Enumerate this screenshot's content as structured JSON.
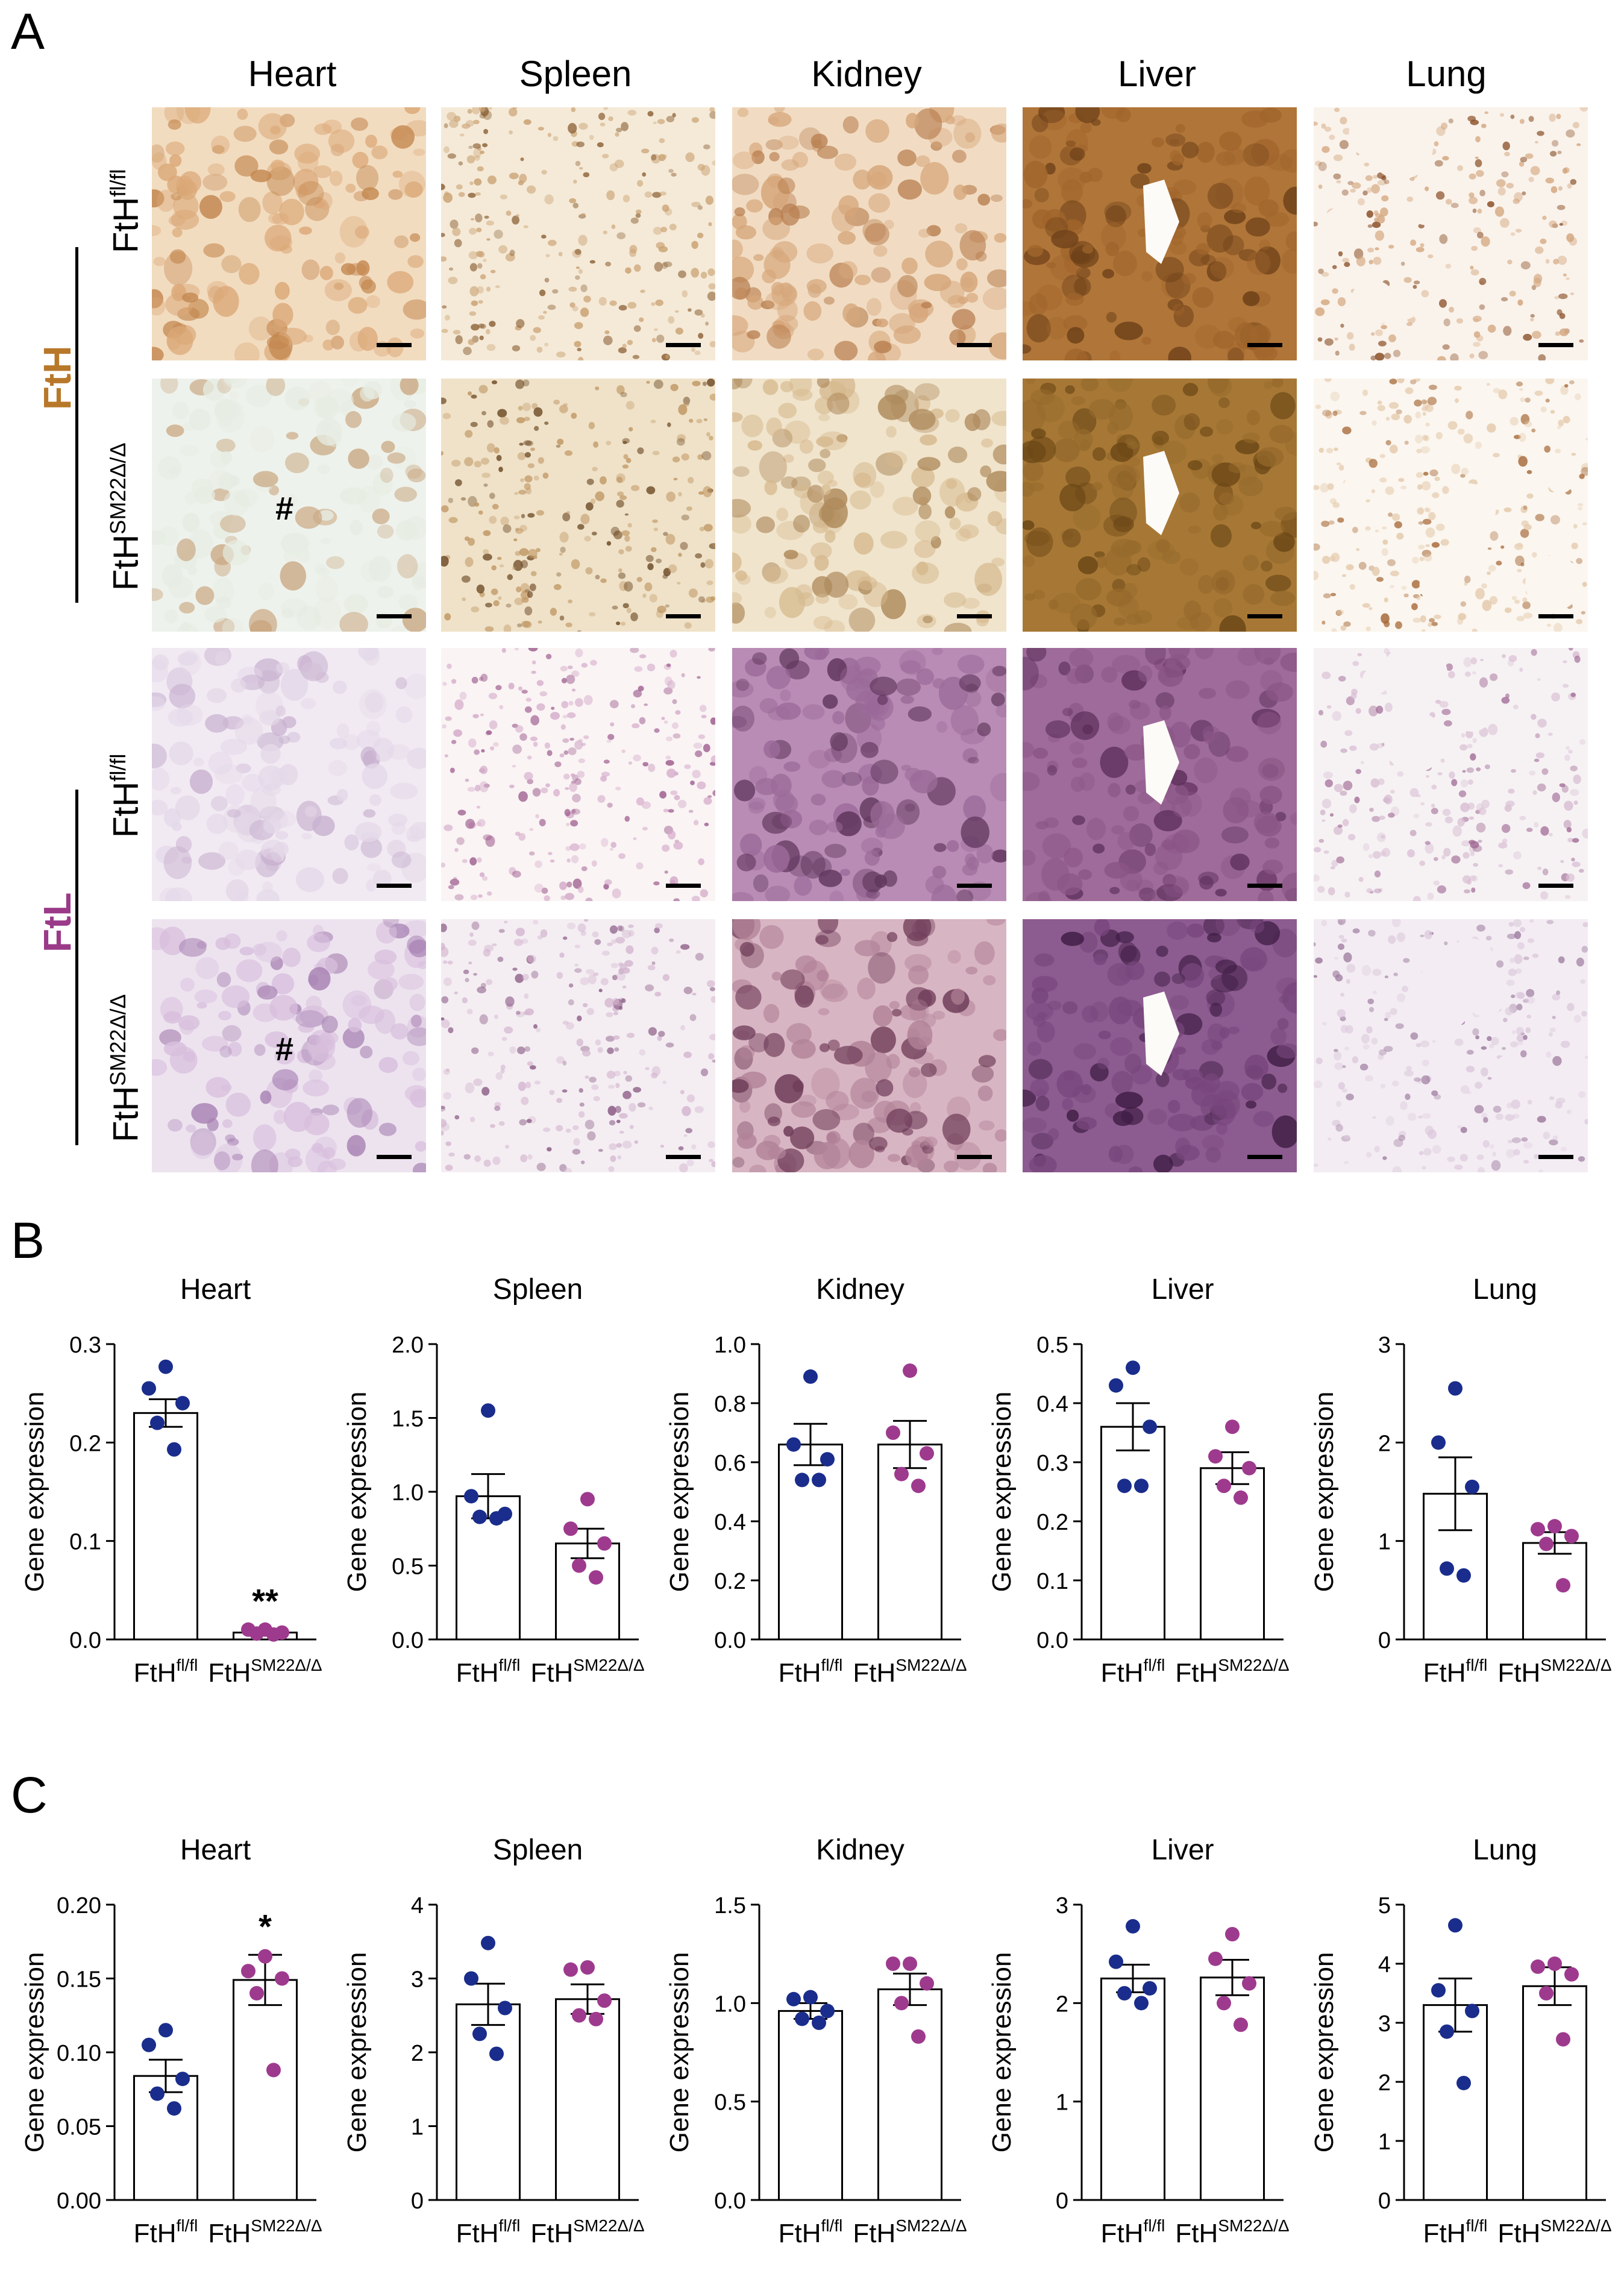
{
  "panels": {
    "A": "A",
    "B": "B",
    "C": "C"
  },
  "organs": [
    "Heart",
    "Spleen",
    "Kidney",
    "Liver",
    "Lung"
  ],
  "staining": {
    "group_labels": [
      "FtH",
      "FtL"
    ],
    "group_colors": [
      "#b8782a",
      "#9a3a88"
    ],
    "genotype_rows": [
      {
        "base": "FtH",
        "sup": "fl/fl"
      },
      {
        "base": "FtH",
        "sup": "SM22Δ/Δ"
      }
    ],
    "hash_mark": "#"
  },
  "colors": {
    "control": "#1a2d8c",
    "knockout": "#9e3a8e"
  },
  "chart_data": [
    {
      "panel": "B",
      "type": "bar",
      "title": "Heart",
      "ylabel": "Gene expression",
      "categories": [
        "FtH",
        "FtH"
      ],
      "category_sups": [
        "fl/fl",
        "SM22Δ/Δ"
      ],
      "ylim": [
        0,
        0.3
      ],
      "yticks": [
        "0.0",
        "0.1",
        "0.2",
        "0.3"
      ],
      "means": [
        0.23,
        0.007
      ],
      "sem": [
        0.014,
        0.002
      ],
      "points": [
        [
          0.277,
          0.255,
          0.24,
          0.22,
          0.193
        ],
        [
          0.01,
          0.01,
          0.007,
          0.006,
          0.005
        ]
      ],
      "annotation": "**",
      "annotation_index": 1
    },
    {
      "panel": "B",
      "type": "bar",
      "title": "Spleen",
      "ylabel": "Gene expression",
      "categories": [
        "FtH",
        "FtH"
      ],
      "category_sups": [
        "fl/fl",
        "SM22Δ/Δ"
      ],
      "ylim": [
        0,
        2.0
      ],
      "yticks": [
        "0.0",
        "0.5",
        "1.0",
        "1.5",
        "2.0"
      ],
      "means": [
        0.97,
        0.65
      ],
      "sem": [
        0.15,
        0.1
      ],
      "points": [
        [
          1.55,
          0.97,
          0.85,
          0.83,
          0.82
        ],
        [
          0.95,
          0.75,
          0.65,
          0.5,
          0.42
        ]
      ],
      "annotation": "",
      "annotation_index": null
    },
    {
      "panel": "B",
      "type": "bar",
      "title": "Kidney",
      "ylabel": "Gene expression",
      "categories": [
        "FtH",
        "FtH"
      ],
      "category_sups": [
        "fl/fl",
        "SM22Δ/Δ"
      ],
      "ylim": [
        0,
        1.0
      ],
      "yticks": [
        "0.0",
        "0.2",
        "0.4",
        "0.6",
        "0.8",
        "1.0"
      ],
      "means": [
        0.66,
        0.66
      ],
      "sem": [
        0.07,
        0.08
      ],
      "points": [
        [
          0.89,
          0.66,
          0.61,
          0.54,
          0.54
        ],
        [
          0.91,
          0.7,
          0.63,
          0.56,
          0.52
        ]
      ],
      "annotation": "",
      "annotation_index": null
    },
    {
      "panel": "B",
      "type": "bar",
      "title": "Liver",
      "ylabel": "Gene expression",
      "categories": [
        "FtH",
        "FtH"
      ],
      "category_sups": [
        "fl/fl",
        "SM22Δ/Δ"
      ],
      "ylim": [
        0,
        0.5
      ],
      "yticks": [
        "0.0",
        "0.1",
        "0.2",
        "0.3",
        "0.4",
        "0.5"
      ],
      "means": [
        0.36,
        0.29
      ],
      "sem": [
        0.04,
        0.027
      ],
      "points": [
        [
          0.46,
          0.43,
          0.36,
          0.26,
          0.26
        ],
        [
          0.36,
          0.31,
          0.29,
          0.26,
          0.24
        ]
      ],
      "annotation": "",
      "annotation_index": null
    },
    {
      "panel": "B",
      "type": "bar",
      "title": "Lung",
      "ylabel": "Gene expression",
      "categories": [
        "FtH",
        "FtH"
      ],
      "category_sups": [
        "fl/fl",
        "SM22Δ/Δ"
      ],
      "ylim": [
        0,
        3
      ],
      "yticks": [
        "0",
        "1",
        "2",
        "3"
      ],
      "means": [
        1.48,
        0.98
      ],
      "sem": [
        0.37,
        0.11
      ],
      "points": [
        [
          2.55,
          2.0,
          1.55,
          0.72,
          0.65
        ],
        [
          1.15,
          1.12,
          1.05,
          0.97,
          0.55
        ]
      ],
      "annotation": "",
      "annotation_index": null
    },
    {
      "panel": "C",
      "type": "bar",
      "title": "Heart",
      "ylabel": "Gene expression",
      "categories": [
        "FtH",
        "FtH"
      ],
      "category_sups": [
        "fl/fl",
        "SM22Δ/Δ"
      ],
      "ylim": [
        0,
        0.2
      ],
      "yticks": [
        "0.00",
        "0.05",
        "0.10",
        "0.15",
        "0.20"
      ],
      "means": [
        0.084,
        0.149
      ],
      "sem": [
        0.011,
        0.017
      ],
      "points": [
        [
          0.115,
          0.105,
          0.082,
          0.072,
          0.062
        ],
        [
          0.165,
          0.155,
          0.15,
          0.14,
          0.088
        ]
      ],
      "annotation": "*",
      "annotation_index": 1
    },
    {
      "panel": "C",
      "type": "bar",
      "title": "Spleen",
      "ylabel": "Gene expression",
      "categories": [
        "FtH",
        "FtH"
      ],
      "category_sups": [
        "fl/fl",
        "SM22Δ/Δ"
      ],
      "ylim": [
        0,
        4
      ],
      "yticks": [
        "0",
        "1",
        "2",
        "3",
        "4"
      ],
      "means": [
        2.65,
        2.72
      ],
      "sem": [
        0.28,
        0.2
      ],
      "points": [
        [
          3.48,
          3.0,
          2.6,
          2.25,
          1.98
        ],
        [
          3.15,
          3.12,
          2.7,
          2.5,
          2.45
        ]
      ],
      "annotation": "",
      "annotation_index": null
    },
    {
      "panel": "C",
      "type": "bar",
      "title": "Kidney",
      "ylabel": "Gene expression",
      "categories": [
        "FtH",
        "FtH"
      ],
      "category_sups": [
        "fl/fl",
        "SM22Δ/Δ"
      ],
      "ylim": [
        0,
        1.5
      ],
      "yticks": [
        "0.0",
        "0.5",
        "1.0",
        "1.5"
      ],
      "means": [
        0.96,
        1.07
      ],
      "sem": [
        0.04,
        0.08
      ],
      "points": [
        [
          1.03,
          1.02,
          0.96,
          0.92,
          0.9
        ],
        [
          1.2,
          1.2,
          1.1,
          1.0,
          0.83
        ]
      ],
      "annotation": "",
      "annotation_index": null
    },
    {
      "panel": "C",
      "type": "bar",
      "title": "Liver",
      "ylabel": "Gene expression",
      "categories": [
        "FtH",
        "FtH"
      ],
      "category_sups": [
        "fl/fl",
        "SM22Δ/Δ"
      ],
      "ylim": [
        0,
        3
      ],
      "yticks": [
        "0",
        "1",
        "2",
        "3"
      ],
      "means": [
        2.25,
        2.26
      ],
      "sem": [
        0.14,
        0.18
      ],
      "points": [
        [
          2.78,
          2.42,
          2.15,
          2.1,
          2.0
        ],
        [
          2.7,
          2.45,
          2.2,
          2.0,
          1.78
        ]
      ],
      "annotation": "",
      "annotation_index": null
    },
    {
      "panel": "C",
      "type": "bar",
      "title": "Lung",
      "ylabel": "Gene expression",
      "categories": [
        "FtH",
        "FtH"
      ],
      "category_sups": [
        "fl/fl",
        "SM22Δ/Δ"
      ],
      "ylim": [
        0,
        5
      ],
      "yticks": [
        "0",
        "1",
        "2",
        "3",
        "4",
        "5"
      ],
      "means": [
        3.3,
        3.62
      ],
      "sem": [
        0.45,
        0.32
      ],
      "points": [
        [
          4.65,
          3.55,
          3.2,
          2.85,
          1.98
        ],
        [
          4.0,
          3.95,
          3.82,
          3.5,
          2.72
        ]
      ],
      "annotation": "",
      "annotation_index": null
    }
  ]
}
